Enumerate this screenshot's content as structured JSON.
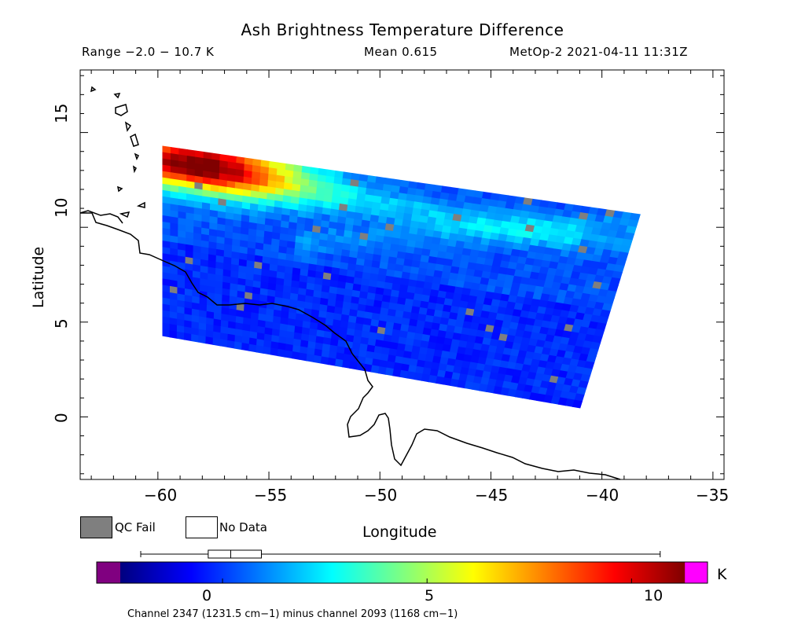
{
  "header": {
    "title": "Ash Brightness Temperature Difference",
    "range": "Range −2.0 − 10.7 K",
    "mean": "Mean 0.615",
    "sat": "MetOp-2 2021-04-11 11:31Z"
  },
  "axes": {
    "xlabel": "Longitude",
    "ylabel": "Latitude",
    "x_ticks": [
      "−60",
      "−55",
      "−50",
      "−45",
      "−40",
      "−35"
    ],
    "y_ticks": [
      "15",
      "10",
      "5",
      "0"
    ],
    "x_range": [
      -63.5,
      -34.5
    ],
    "y_range": [
      -3.3,
      18.3
    ]
  },
  "legend": {
    "qc_fail": "QC Fail",
    "no_data": "No Data",
    "qc_fail_color": "#7f7f7f",
    "no_data_color": "#ffffff"
  },
  "colorbar": {
    "unit": "K",
    "ticks": [
      "0",
      "5",
      "10"
    ],
    "range": [
      -2.5,
      11.3
    ],
    "under_color": "#800080",
    "over_color": "#ff00ff",
    "boxplot": {
      "min": -2.0,
      "q1": -0.35,
      "median": 0.2,
      "q3": 0.95,
      "max": 10.7
    },
    "caption": "Channel 2347 (1231.5 cm−1) minus channel 2093 (1168 cm−1)"
  },
  "swath": {
    "corners_lonlat": {
      "top_left": [
        -59.8,
        14.3
      ],
      "top_right": [
        -38.3,
        10.7
      ],
      "bottom_left": [
        -59.8,
        4.3
      ],
      "bottom_right": [
        -41.0,
        0.5
      ]
    }
  }
}
